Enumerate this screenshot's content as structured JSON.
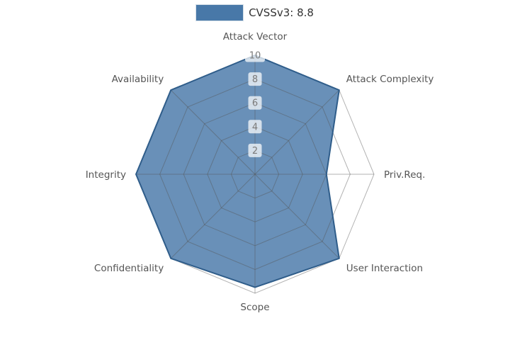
{
  "legend": {
    "label": "CVSSv3: 8.8",
    "swatch_color": "#4878a8"
  },
  "chart_data": {
    "type": "radar",
    "title": "",
    "series_name": "CVSSv3: 8.8",
    "categories": [
      "Attack Vector",
      "Attack Complexity",
      "Priv.Req.",
      "User Interaction",
      "Scope",
      "Confidentiality",
      "Integrity",
      "Availability"
    ],
    "values": [
      10,
      10,
      6,
      10,
      9.5,
      10,
      10,
      10
    ],
    "rticks": [
      2,
      4,
      6,
      8,
      10
    ],
    "rmax": 10,
    "fill_color": "#4878a8",
    "fill_opacity": 0.82,
    "edge_color": "#2f5d8a",
    "grid_color": "#555555",
    "grid_opacity": 0.45,
    "tick_label_color": "#7a7a7a",
    "axis_label_color": "#555555"
  }
}
